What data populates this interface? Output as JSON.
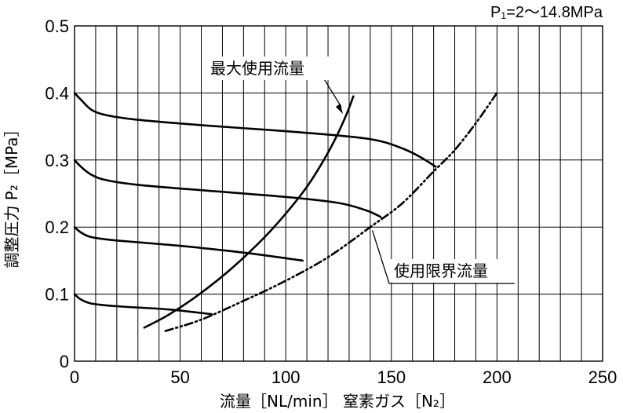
{
  "chart_data": {
    "type": "line",
    "condition": "P₁=2～14.8MPa",
    "xlabel": "流量［NL/min］ 窒素ガス［N₂］",
    "ylabel": "調整圧力 P₂［MPa］",
    "xlim": [
      0,
      250
    ],
    "ylim": [
      0,
      0.5
    ],
    "x_major_ticks": [
      0,
      50,
      100,
      150,
      200,
      250
    ],
    "x_tick_labels": [
      "0",
      "50",
      "100",
      "150",
      "200",
      "250"
    ],
    "x_minor_step": 10,
    "y_ticks": [
      0,
      0.1,
      0.2,
      0.3,
      0.4,
      0.5
    ],
    "y_tick_labels": [
      "0",
      "0.1",
      "0.2",
      "0.3",
      "0.4",
      "0.5"
    ],
    "grid": true,
    "series": [
      {
        "set_pressure": 0.4,
        "style": "solid",
        "points": [
          [
            0,
            0.4
          ],
          [
            3,
            0.39
          ],
          [
            8,
            0.375
          ],
          [
            15,
            0.367
          ],
          [
            30,
            0.36
          ],
          [
            60,
            0.352
          ],
          [
            100,
            0.343
          ],
          [
            130,
            0.335
          ],
          [
            145,
            0.328
          ],
          [
            157,
            0.315
          ],
          [
            165,
            0.302
          ],
          [
            171,
            0.29
          ]
        ]
      },
      {
        "set_pressure": 0.3,
        "style": "solid",
        "points": [
          [
            0,
            0.3
          ],
          [
            3,
            0.29
          ],
          [
            8,
            0.278
          ],
          [
            15,
            0.27
          ],
          [
            30,
            0.263
          ],
          [
            60,
            0.255
          ],
          [
            100,
            0.245
          ],
          [
            125,
            0.236
          ],
          [
            138,
            0.225
          ],
          [
            145,
            0.215
          ]
        ]
      },
      {
        "set_pressure": 0.2,
        "style": "solid",
        "points": [
          [
            0,
            0.2
          ],
          [
            3,
            0.192
          ],
          [
            8,
            0.185
          ],
          [
            20,
            0.18
          ],
          [
            50,
            0.172
          ],
          [
            80,
            0.162
          ],
          [
            108,
            0.15
          ]
        ]
      },
      {
        "set_pressure": 0.1,
        "style": "solid",
        "points": [
          [
            0,
            0.1
          ],
          [
            3,
            0.092
          ],
          [
            8,
            0.086
          ],
          [
            20,
            0.082
          ],
          [
            45,
            0.077
          ],
          [
            65,
            0.07
          ]
        ]
      },
      {
        "name": "最大使用流量",
        "style": "solid",
        "points": [
          [
            33,
            0.05
          ],
          [
            45,
            0.07
          ],
          [
            60,
            0.102
          ],
          [
            75,
            0.14
          ],
          [
            90,
            0.185
          ],
          [
            100,
            0.22
          ],
          [
            110,
            0.26
          ],
          [
            118,
            0.3
          ],
          [
            124,
            0.335
          ],
          [
            129,
            0.37
          ],
          [
            132,
            0.395
          ]
        ]
      },
      {
        "name": "使用限界流量",
        "style": "dash-dot-dot",
        "points": [
          [
            43,
            0.045
          ],
          [
            60,
            0.062
          ],
          [
            80,
            0.09
          ],
          [
            100,
            0.12
          ],
          [
            120,
            0.155
          ],
          [
            140,
            0.2
          ],
          [
            155,
            0.235
          ],
          [
            170,
            0.283
          ],
          [
            180,
            0.315
          ],
          [
            190,
            0.355
          ],
          [
            200,
            0.4
          ]
        ]
      }
    ],
    "annotations": [
      {
        "text": "最大使用流量",
        "target": [
          127,
          0.37
        ]
      },
      {
        "text": "使用限界流量",
        "target": [
          141,
          0.195
        ]
      }
    ]
  }
}
